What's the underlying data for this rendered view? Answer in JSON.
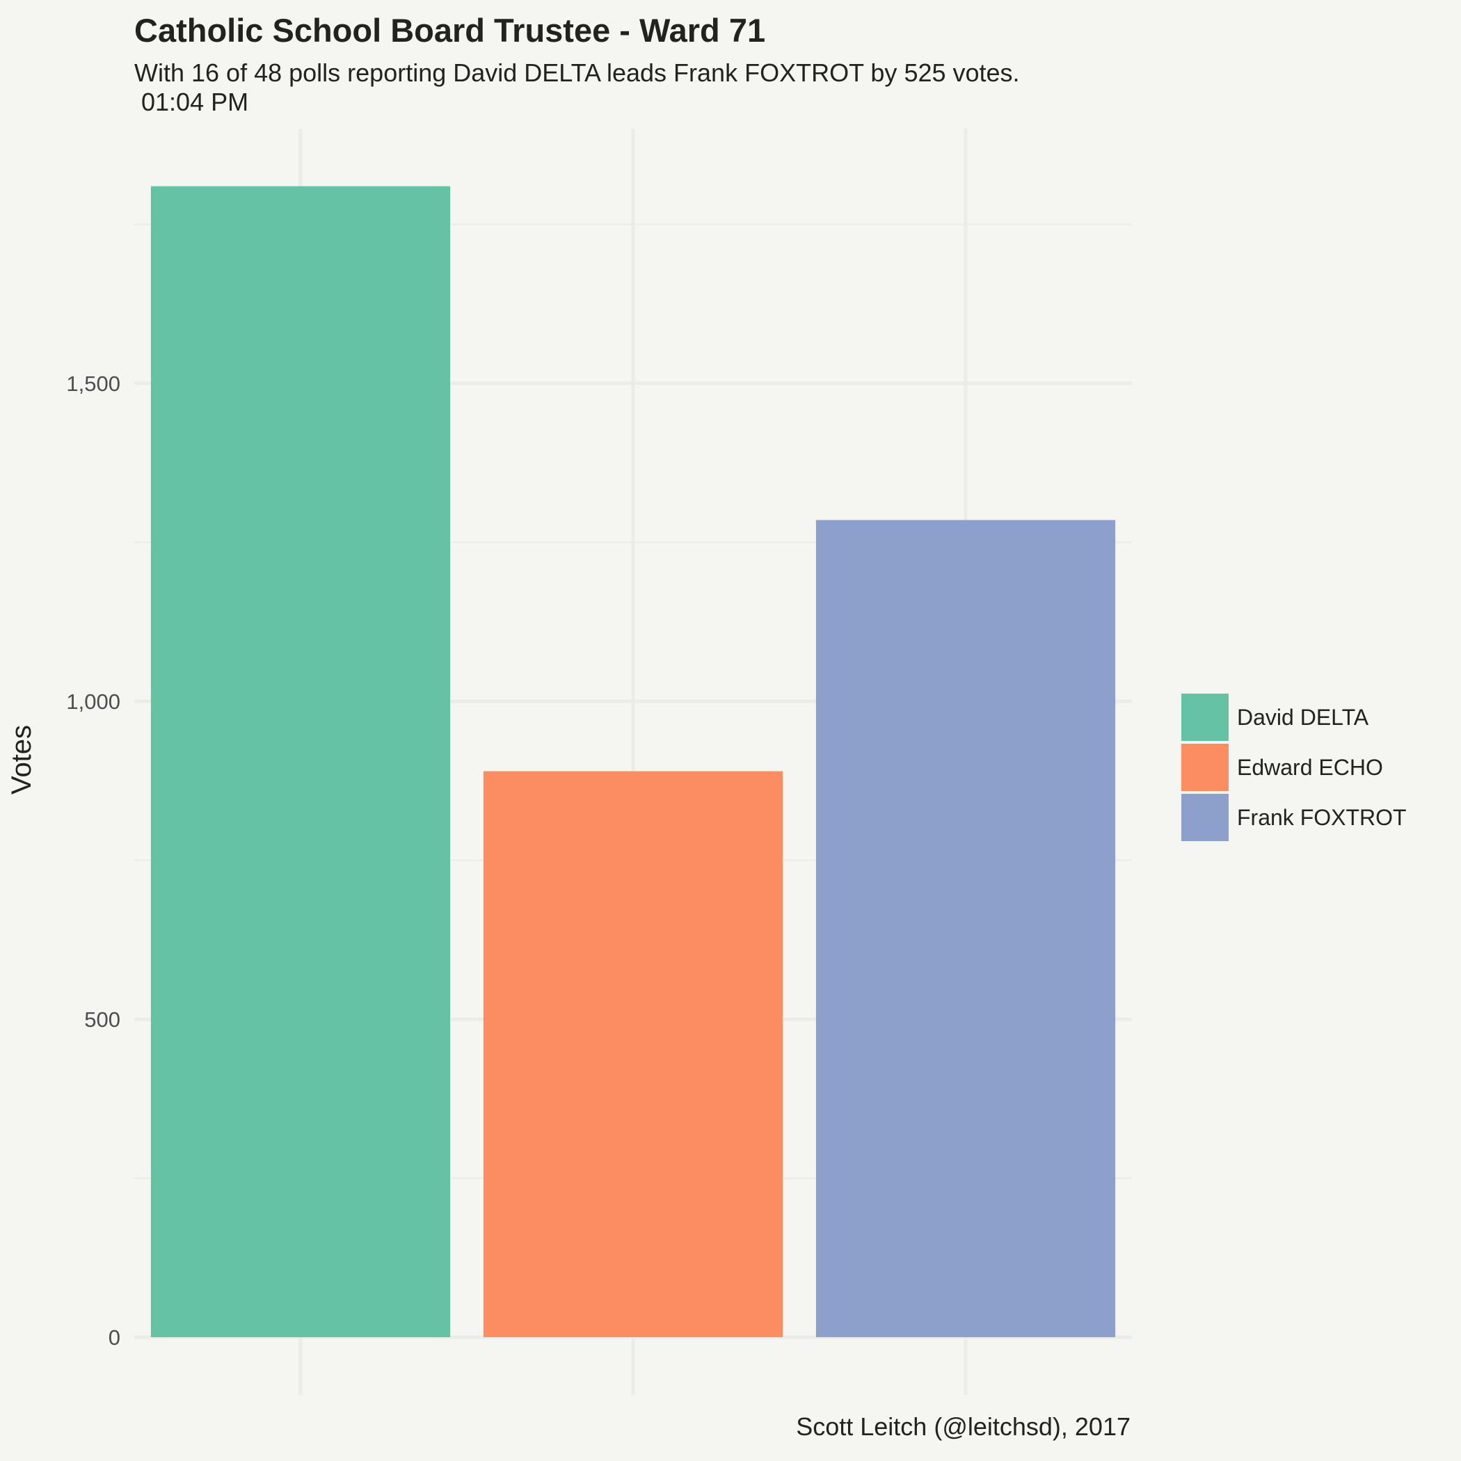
{
  "title": "Catholic School Board Trustee - Ward 71",
  "subtitle": "With 16 of 48 polls reporting David DELTA leads Frank FOXTROT by 525 votes.\n 01:04 PM",
  "caption": "Scott Leitch (@leitchsd), 2017",
  "colors": {
    "background": "#f5f5f2",
    "grid": "#ebebe8",
    "text": "#22221f",
    "tick_text": "#4d4d4d"
  },
  "chart_data": {
    "type": "bar",
    "categories": [
      "David DELTA",
      "Edward ECHO",
      "Frank FOXTROT"
    ],
    "values": [
      1810,
      890,
      1285
    ],
    "colors": [
      "#66c2a5",
      "#fc8d62",
      "#8da0cb"
    ],
    "ylabel": "Votes",
    "xlabel": "",
    "ylim": [
      0,
      1900
    ],
    "yticks": [
      0,
      500,
      1000,
      1500
    ],
    "ytick_labels": [
      "0",
      "500",
      "1,000",
      "1,500"
    ],
    "legend": {
      "placement": "right",
      "entries": [
        "David DELTA",
        "Edward ECHO",
        "Frank FOXTROT"
      ]
    },
    "grid": true
  }
}
